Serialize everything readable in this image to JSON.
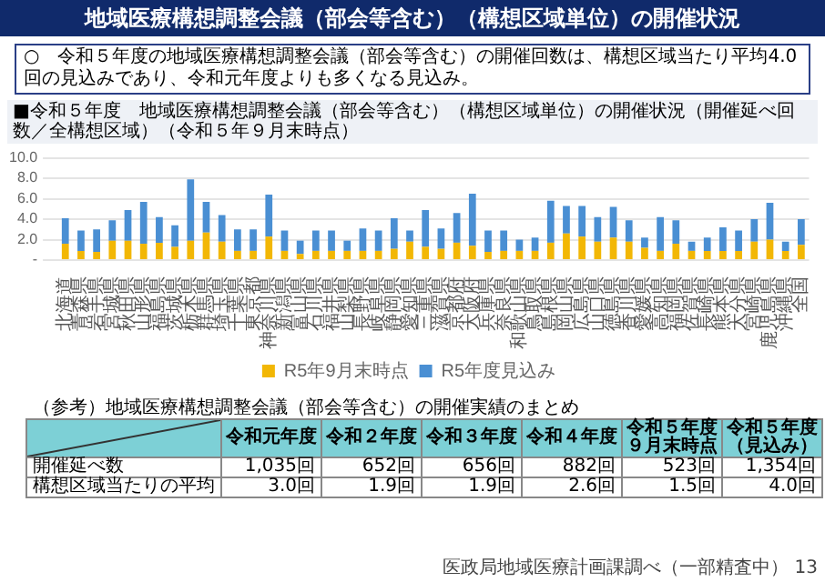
{
  "chart_data": {
    "type": "bar",
    "title": "地域医療構想調整会議（部会等含む）（構想区域単位）の開催状況",
    "subtitle": "○　令和５年度の地域医療構想調整会議（部会等含む）の開催回数は、構想区域当たり平均4.0回の見込みであり、令和元年度よりも多くなる見込み。",
    "annotations": [
      "■令和５年度　地域医療構想調整会議（部会等含む）（構想区域単位）の開催状況（開催延べ回数／全構想区域）（令和５年９月末時点）",
      "（参考）地域医療構想調整会議（部会等含む）の開催実績のまとめ",
      "令和元年度",
      "令和２年度",
      "令和３年度",
      "令和４年度",
      "令和５年度９月末時点",
      "令和５年度（見込み）",
      "開催延べ数",
      "1,035回",
      "652回",
      "656回",
      "882回",
      "523回",
      "1,354回",
      "構想区域当たりの平均",
      "3.0回",
      "1.9回",
      "1.9回",
      "2.6回",
      "1.5回",
      "4.0回",
      "医政局地域医療計画課調べ（一部精査中）",
      "13"
    ],
    "categories": [
      "北海道",
      "青森県",
      "岩手県",
      "宮城県",
      "秋田県",
      "山形県",
      "福島県",
      "茨城県",
      "栃木県",
      "群馬県",
      "埼玉県",
      "千葉県",
      "東京都",
      "神奈川県",
      "新潟県",
      "富山県",
      "石川県",
      "福井県",
      "山梨県",
      "長野県",
      "岐阜県",
      "静岡県",
      "愛知県",
      "三重県",
      "滋賀県",
      "京都府",
      "大阪府",
      "兵庫県",
      "奈良県",
      "和歌山県",
      "鳥取県",
      "島根県",
      "岡山県",
      "広島県",
      "山口県",
      "徳島県",
      "香川県",
      "愛媛県",
      "高知県",
      "福岡県",
      "佐賀県",
      "長崎県",
      "熊本県",
      "大分県",
      "宮崎県",
      "鹿児島県",
      "沖縄県",
      "全国"
    ],
    "series": [
      {
        "name": "R5年9月末時点",
        "color": "#f2b705",
        "values": [
          1.6,
          0.9,
          0.8,
          1.9,
          1.9,
          1.6,
          1.7,
          1.3,
          1.9,
          2.7,
          1.8,
          0.9,
          0.9,
          2.3,
          0.9,
          0.6,
          0.9,
          0.9,
          0.9,
          0.9,
          0.9,
          1.1,
          1.8,
          1.3,
          1.1,
          1.7,
          1.4,
          0.8,
          0.9,
          0.9,
          0.9,
          1.7,
          2.6,
          2.3,
          1.8,
          2.2,
          1.8,
          1.2,
          0.9,
          1.6,
          0.9,
          0.9,
          0.9,
          0.9,
          1.8,
          2.0,
          0.9,
          1.5
        ]
      },
      {
        "name": "R5年度見込み",
        "color": "#4a8fd3",
        "values": [
          2.5,
          2.0,
          2.2,
          2.0,
          3.0,
          4.1,
          2.5,
          2.1,
          6.0,
          3.0,
          2.6,
          2.1,
          2.1,
          4.1,
          2.0,
          1.3,
          2.0,
          2.0,
          1.0,
          2.2,
          2.0,
          3.0,
          1.1,
          3.6,
          2.0,
          2.9,
          5.1,
          2.1,
          2.0,
          1.1,
          1.3,
          4.1,
          2.7,
          3.0,
          2.4,
          3.0,
          2.1,
          1.0,
          3.3,
          2.3,
          0.9,
          1.3,
          2.3,
          2.0,
          2.2,
          3.6,
          0.9,
          2.5
        ]
      }
    ],
    "stacked": true,
    "ylim": [
      0,
      10
    ],
    "yticks": [
      {
        "value": 0,
        "label": "-"
      },
      {
        "value": 2,
        "label": "2.0"
      },
      {
        "value": 4,
        "label": "4.0"
      },
      {
        "value": 6,
        "label": "6.0"
      },
      {
        "value": 8,
        "label": "8.0"
      },
      {
        "value": 10,
        "label": "10.0"
      }
    ],
    "grid": "y",
    "legend": "bottom"
  }
}
